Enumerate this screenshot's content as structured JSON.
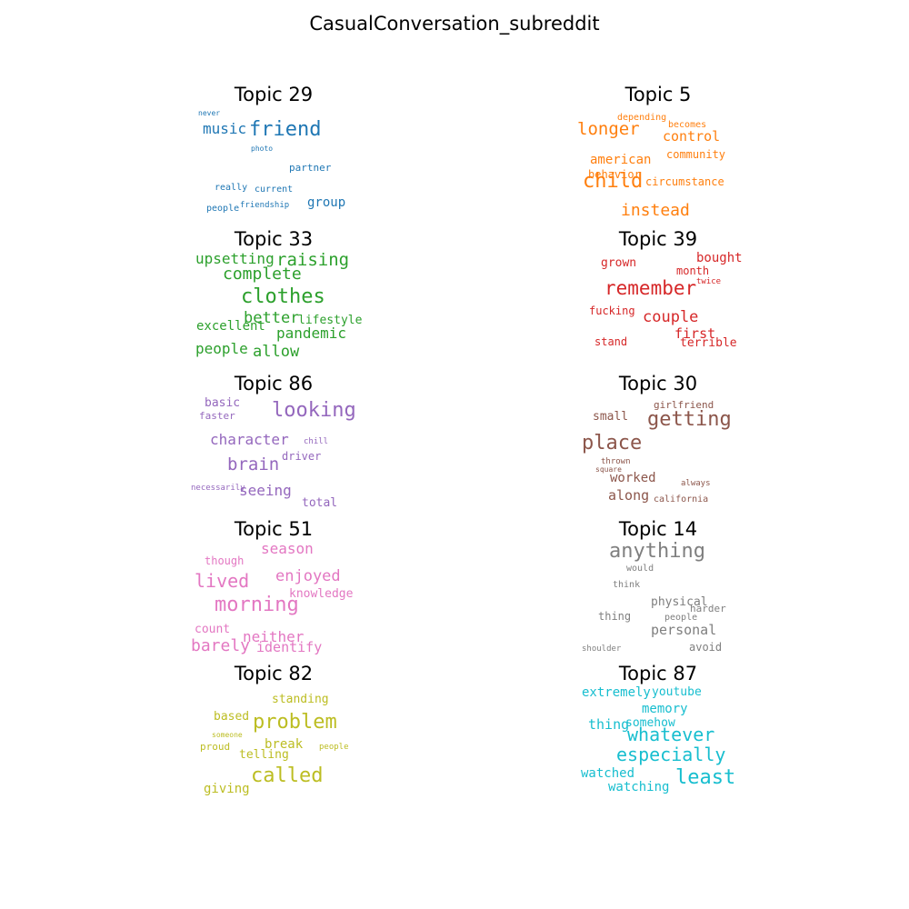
{
  "title": "CasualConversation_subreddit",
  "chart_data": {
    "type": "wordcloud",
    "title": "CasualConversation_subreddit",
    "grid": false,
    "layout": "5 rows x 2 columns",
    "topics": [
      {
        "title": "Topic 29",
        "color": "#1f77b4",
        "words": [
          {
            "text": "never",
            "weight": 8
          },
          {
            "text": "music",
            "weight": 16
          },
          {
            "text": "friend",
            "weight": 22
          },
          {
            "text": "photo",
            "weight": 8
          },
          {
            "text": "partner",
            "weight": 11
          },
          {
            "text": "really",
            "weight": 10
          },
          {
            "text": "current",
            "weight": 10
          },
          {
            "text": "people",
            "weight": 10
          },
          {
            "text": "friendship",
            "weight": 9
          },
          {
            "text": "group",
            "weight": 14
          }
        ]
      },
      {
        "title": "Topic 5",
        "color": "#ff7f0e",
        "words": [
          {
            "text": "depending",
            "weight": 10
          },
          {
            "text": "becomes",
            "weight": 10
          },
          {
            "text": "longer",
            "weight": 19
          },
          {
            "text": "control",
            "weight": 15
          },
          {
            "text": "community",
            "weight": 12
          },
          {
            "text": "american",
            "weight": 14
          },
          {
            "text": "behavior",
            "weight": 12
          },
          {
            "text": "child",
            "weight": 22
          },
          {
            "text": "circumstance",
            "weight": 12
          },
          {
            "text": "instead",
            "weight": 18
          }
        ]
      },
      {
        "title": "Topic 33",
        "color": "#2ca02c",
        "words": [
          {
            "text": "upsetting",
            "weight": 16
          },
          {
            "text": "raising",
            "weight": 19
          },
          {
            "text": "complete",
            "weight": 18
          },
          {
            "text": "clothes",
            "weight": 22
          },
          {
            "text": "better",
            "weight": 17
          },
          {
            "text": "lifestyle",
            "weight": 13
          },
          {
            "text": "excellent",
            "weight": 14
          },
          {
            "text": "pandemic",
            "weight": 16
          },
          {
            "text": "people",
            "weight": 16
          },
          {
            "text": "allow",
            "weight": 17
          }
        ]
      },
      {
        "title": "Topic 39",
        "color": "#d62728",
        "words": [
          {
            "text": "grown",
            "weight": 13
          },
          {
            "text": "bought",
            "weight": 14
          },
          {
            "text": "month",
            "weight": 12
          },
          {
            "text": "twice",
            "weight": 9
          },
          {
            "text": "remember",
            "weight": 21
          },
          {
            "text": "fucking",
            "weight": 12
          },
          {
            "text": "couple",
            "weight": 17
          },
          {
            "text": "first",
            "weight": 15
          },
          {
            "text": "stand",
            "weight": 12
          },
          {
            "text": "terrible",
            "weight": 13
          }
        ]
      },
      {
        "title": "Topic 86",
        "color": "#9467bd",
        "words": [
          {
            "text": "basic",
            "weight": 13
          },
          {
            "text": "looking",
            "weight": 22
          },
          {
            "text": "faster",
            "weight": 11
          },
          {
            "text": "character",
            "weight": 16
          },
          {
            "text": "chill",
            "weight": 9
          },
          {
            "text": "driver",
            "weight": 12
          },
          {
            "text": "brain",
            "weight": 19
          },
          {
            "text": "necessarily",
            "weight": 9
          },
          {
            "text": "seeing",
            "weight": 16
          },
          {
            "text": "total",
            "weight": 13
          }
        ]
      },
      {
        "title": "Topic 30",
        "color": "#8c564b",
        "words": [
          {
            "text": "girlfriend",
            "weight": 11
          },
          {
            "text": "small",
            "weight": 13
          },
          {
            "text": "getting",
            "weight": 22
          },
          {
            "text": "place",
            "weight": 22
          },
          {
            "text": "thrown",
            "weight": 9
          },
          {
            "text": "square",
            "weight": 8
          },
          {
            "text": "worked",
            "weight": 14
          },
          {
            "text": "always",
            "weight": 9
          },
          {
            "text": "along",
            "weight": 15
          },
          {
            "text": "california",
            "weight": 10
          }
        ]
      },
      {
        "title": "Topic 51",
        "color": "#e377c2",
        "words": [
          {
            "text": "season",
            "weight": 16
          },
          {
            "text": "though",
            "weight": 12
          },
          {
            "text": "lived",
            "weight": 20
          },
          {
            "text": "enjoyed",
            "weight": 17
          },
          {
            "text": "knowledge",
            "weight": 13
          },
          {
            "text": "morning",
            "weight": 22
          },
          {
            "text": "count",
            "weight": 13
          },
          {
            "text": "neither",
            "weight": 16
          },
          {
            "text": "barely",
            "weight": 18
          },
          {
            "text": "identify",
            "weight": 15
          }
        ]
      },
      {
        "title": "Topic 14",
        "color": "#7f7f7f",
        "words": [
          {
            "text": "anything",
            "weight": 22
          },
          {
            "text": "would",
            "weight": 10
          },
          {
            "text": "think",
            "weight": 10
          },
          {
            "text": "physical",
            "weight": 13
          },
          {
            "text": "harder",
            "weight": 11
          },
          {
            "text": "thing",
            "weight": 12
          },
          {
            "text": "people",
            "weight": 10
          },
          {
            "text": "personal",
            "weight": 15
          },
          {
            "text": "shoulder",
            "weight": 9
          },
          {
            "text": "avoid",
            "weight": 12
          }
        ]
      },
      {
        "title": "Topic 82",
        "color": "#bcbd22",
        "words": [
          {
            "text": "standing",
            "weight": 13
          },
          {
            "text": "based",
            "weight": 13
          },
          {
            "text": "problem",
            "weight": 22
          },
          {
            "text": "someone",
            "weight": 8
          },
          {
            "text": "proud",
            "weight": 11
          },
          {
            "text": "break",
            "weight": 14
          },
          {
            "text": "people",
            "weight": 9
          },
          {
            "text": "telling",
            "weight": 13
          },
          {
            "text": "called",
            "weight": 22
          },
          {
            "text": "giving",
            "weight": 14
          }
        ]
      },
      {
        "title": "Topic 87",
        "color": "#17becf",
        "words": [
          {
            "text": "extremely",
            "weight": 14
          },
          {
            "text": "youtube",
            "weight": 13
          },
          {
            "text": "memory",
            "weight": 14
          },
          {
            "text": "thing",
            "weight": 15
          },
          {
            "text": "somehow",
            "weight": 13
          },
          {
            "text": "whatever",
            "weight": 20
          },
          {
            "text": "especially",
            "weight": 20
          },
          {
            "text": "watched",
            "weight": 14
          },
          {
            "text": "least",
            "weight": 22
          },
          {
            "text": "watching",
            "weight": 14
          }
        ]
      }
    ]
  }
}
